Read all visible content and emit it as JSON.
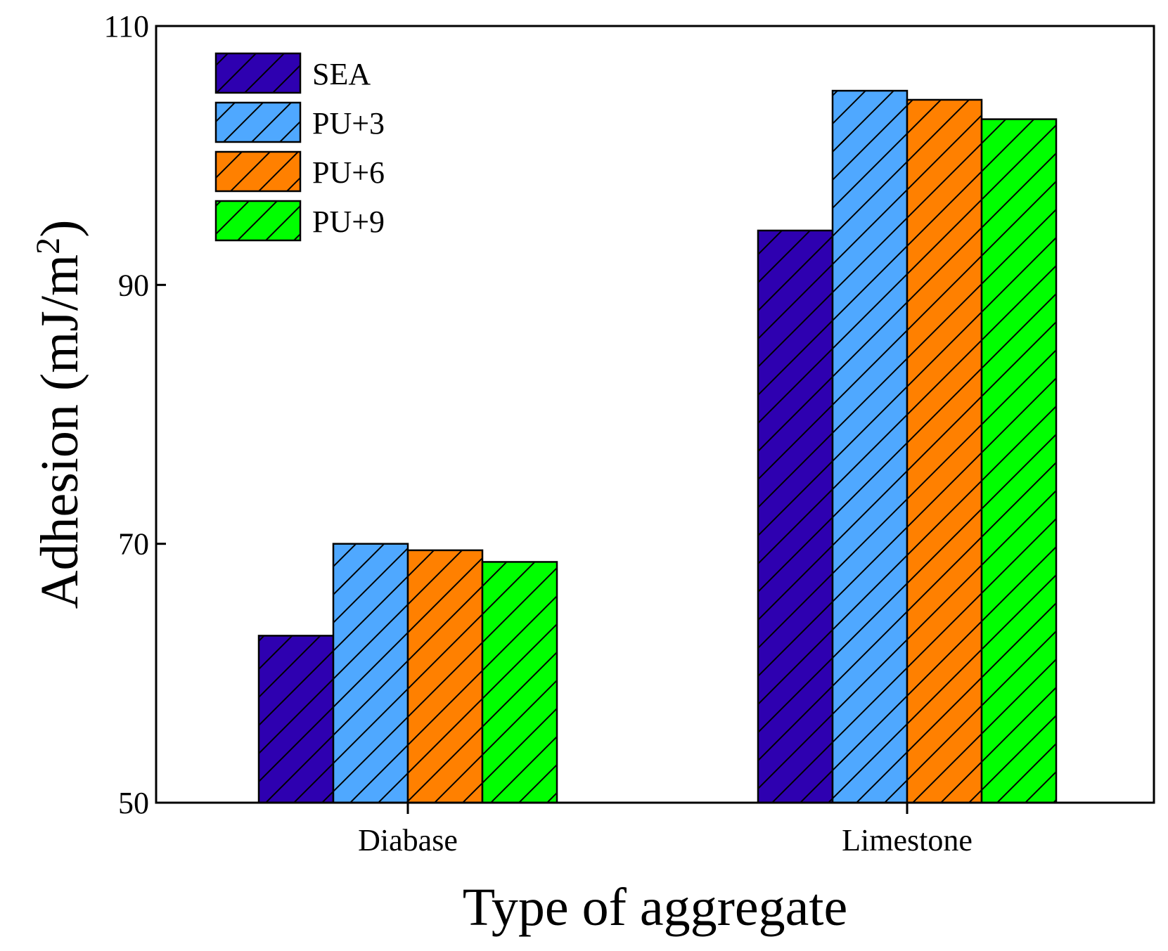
{
  "chart_data": {
    "type": "bar",
    "title": "",
    "xlabel": "Type of aggregate",
    "ylabel": "Adhesion (mJ/m",
    "ylabel_superscript": "2",
    "ylabel_close": ")",
    "categories": [
      "Diabase",
      "Limestone"
    ],
    "ylim": [
      50,
      110
    ],
    "yticks": [
      50,
      70,
      90,
      110
    ],
    "ytick_labels": [
      "50",
      "70",
      "90",
      "110"
    ],
    "legend_position": "top-left",
    "grid": false,
    "hatch": "diagonal",
    "series": [
      {
        "name": "SEA",
        "color": "#2e00b0",
        "values": [
          62.9,
          94.2
        ]
      },
      {
        "name": "PU+3",
        "color": "#4fa8ff",
        "values": [
          70.0,
          105.0
        ]
      },
      {
        "name": "PU+6",
        "color": "#ff8000",
        "values": [
          69.5,
          104.3
        ]
      },
      {
        "name": "PU+9",
        "color": "#00ff00",
        "values": [
          68.6,
          102.8
        ]
      }
    ]
  }
}
